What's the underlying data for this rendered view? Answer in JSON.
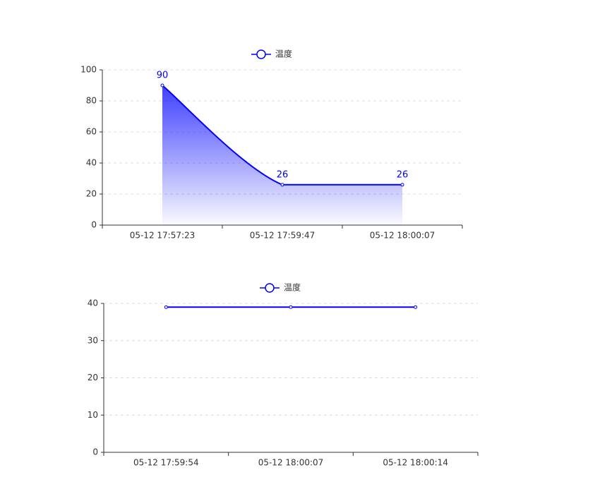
{
  "chart_data": [
    {
      "type": "line",
      "legend": "温度",
      "color": "#0000ff",
      "area": true,
      "labels": true,
      "smooth": true,
      "grid": true,
      "categories": [
        "05-12 17:57:23",
        "05-12 17:59:47",
        "05-12 18:00:07"
      ],
      "values": [
        90,
        26,
        26
      ],
      "ylim": [
        0,
        100
      ],
      "yticks": [
        0,
        20,
        40,
        60,
        80,
        100
      ]
    },
    {
      "type": "line",
      "legend": "温度",
      "color": "#0000ff",
      "area": false,
      "labels": false,
      "smooth": true,
      "grid": true,
      "categories": [
        "05-12 17:59:54",
        "05-12 18:00:07",
        "05-12 18:00:14"
      ],
      "values": [
        39,
        39,
        39
      ],
      "ylim": [
        0,
        40
      ],
      "yticks": [
        0,
        10,
        20,
        30,
        40
      ]
    }
  ]
}
